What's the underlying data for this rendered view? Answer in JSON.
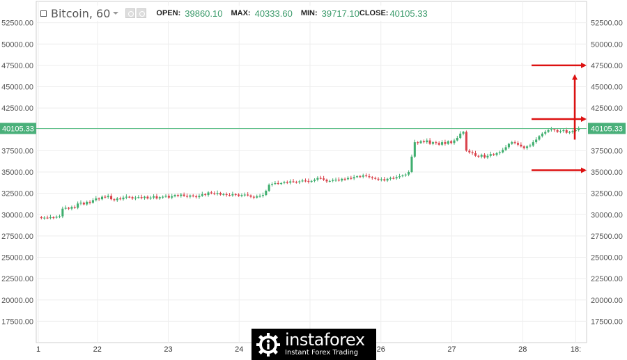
{
  "header": {
    "symbol": "Bitcoin, 60",
    "open_label": "OPEN:",
    "open_value": "39860.10",
    "max_label": "MAX:",
    "max_value": "40333.60",
    "min_label": "MIN:",
    "min_value": "39717.10",
    "close_label": "CLOSE:",
    "close_value": "40105.33"
  },
  "watermark": {
    "brand": "instaforex",
    "tagline": "Instant Forex Trading"
  },
  "colors": {
    "up": "#3fae6e",
    "down": "#d9424b",
    "price_line": "#5fc08a",
    "price_tag_bg": "#4ab07a",
    "grid": "#eeeeee",
    "axis_text": "#555555",
    "annotation_arrow": "#dd1111"
  },
  "chart_data": {
    "type": "candlestick",
    "title": "",
    "xlabel": "",
    "ylabel": "",
    "ylim": [
      15000,
      55000
    ],
    "y_ticks": [
      "17500.00",
      "20000.00",
      "22500.00",
      "25000.00",
      "27500.00",
      "30000.00",
      "32500.00",
      "35000.00",
      "37500.00",
      "40000.00",
      "42500.00",
      "45000.00",
      "47500.00",
      "50000.00",
      "52500.00"
    ],
    "x_ticks": [
      {
        "label": "1",
        "t": 0.0
      },
      {
        "label": "22",
        "t": 20
      },
      {
        "label": "23",
        "t": 44
      },
      {
        "label": "24",
        "t": 68
      },
      {
        "label": "25",
        "t": 92
      },
      {
        "label": "26",
        "t": 116
      },
      {
        "label": "27",
        "t": 140
      },
      {
        "label": "28",
        "t": 164
      },
      {
        "label": "18:",
        "t": 182
      }
    ],
    "x_range": [
      0,
      184
    ],
    "last_price": 40105.33,
    "last_price_label": "40105.33",
    "grid": true,
    "series": [
      {
        "values": [
          29700,
          29600,
          29650,
          29600,
          29700,
          29650,
          29750,
          29800,
          30700,
          30800,
          30700,
          30900,
          30800,
          31300,
          31400,
          31200,
          31500,
          31400,
          31700,
          31900,
          31800,
          32100,
          32050,
          32200,
          31800,
          31700,
          31900,
          31800,
          32000,
          32100,
          32050,
          31900,
          32000,
          32050,
          31950,
          32100,
          31900,
          32000,
          32150,
          31900,
          32050,
          32100,
          32200,
          32000,
          32150,
          32300,
          32200,
          32350,
          32200,
          32100,
          32250,
          32150,
          32050,
          32200,
          32400,
          32300,
          32600,
          32500,
          32450,
          32550,
          32350,
          32400,
          32300,
          32250,
          32400,
          32350,
          32200,
          32300,
          32350,
          32250,
          32100,
          32000,
          32150,
          32200,
          32300,
          32800,
          33500,
          33600,
          33700,
          33650,
          33700,
          33800,
          33750,
          33900,
          33850,
          33800,
          33900,
          34000,
          33950,
          33850,
          33950,
          34100,
          34300,
          34250,
          34100,
          33900,
          33950,
          34050,
          34100,
          34000,
          34200,
          34150,
          34300,
          34250,
          34400,
          34500,
          34450,
          34600,
          34500,
          34400,
          34300,
          34200,
          34100,
          34150,
          34000,
          34200,
          34300,
          34250,
          34400,
          34500,
          34600,
          34700,
          35000,
          36800,
          38500,
          38400,
          38600,
          38500,
          38700,
          38300,
          38500,
          38400,
          38200,
          38500,
          38300,
          38600,
          38400,
          38700,
          39000,
          39500,
          39700,
          37500,
          37300,
          37200,
          36900,
          36800,
          37000,
          36700,
          36900,
          37100,
          37000,
          37200,
          37300,
          37600,
          37900,
          38300,
          38500,
          38400,
          38200,
          38000,
          37800,
          38000,
          38100,
          38500,
          38800,
          39200,
          39500,
          39700,
          39900,
          40000,
          39900,
          39700,
          39800,
          39900,
          39600,
          39700,
          39800,
          39900,
          40105
        ]
      }
    ]
  }
}
